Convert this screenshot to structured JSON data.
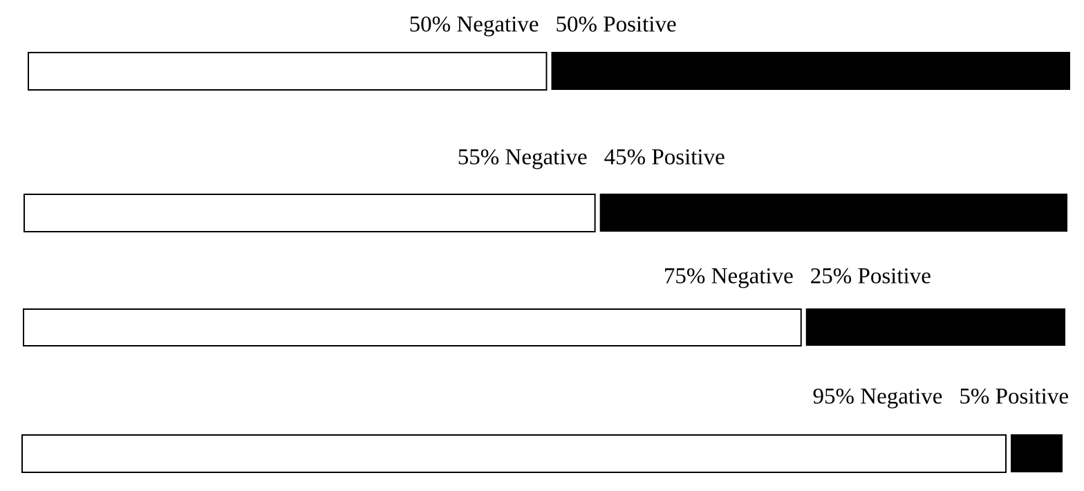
{
  "rows": [
    {
      "negative": 50,
      "negative_label": "50% Negative",
      "positive": 50,
      "positive_label": "50% Positive"
    },
    {
      "negative": 55,
      "negative_label": "55% Negative",
      "positive": 45,
      "positive_label": "45% Positive"
    },
    {
      "negative": 75,
      "negative_label": "75% Negative",
      "positive": 25,
      "positive_label": "25% Positive"
    },
    {
      "negative": 95,
      "negative_label": "95% Negative",
      "positive": 5,
      "positive_label": "5% Positive"
    }
  ]
}
